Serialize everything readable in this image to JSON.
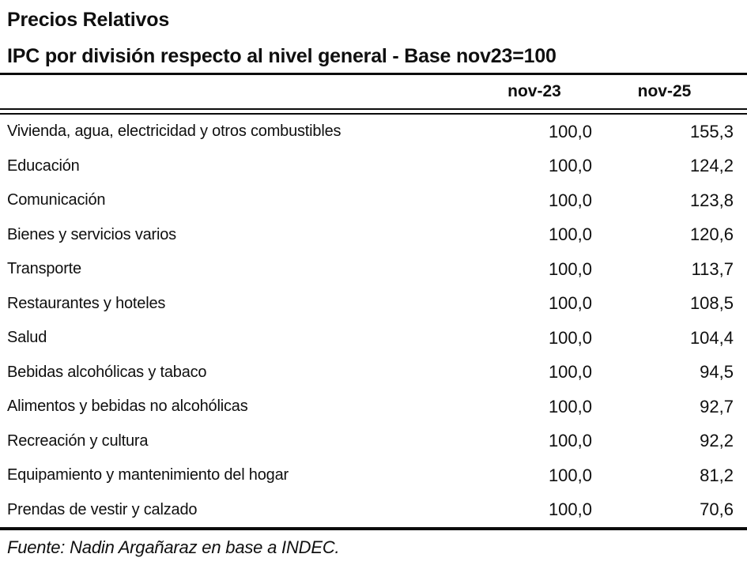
{
  "title": "Precios Relativos",
  "subtitle": "IPC por división respecto al nivel general - Base nov23=100",
  "footer": "Fuente: Nadin Argañaraz en base a INDEC.",
  "colors": {
    "background": "#ffffff",
    "text": "#0f0f0f",
    "rule": "#0c0c0c"
  },
  "chart_data": {
    "type": "table",
    "title": "Precios Relativos",
    "subtitle": "IPC por división respecto al nivel general - Base nov23=100",
    "columns": [
      "nov-23",
      "nov-25"
    ],
    "categories": [
      "Vivienda, agua, electricidad y otros combustibles",
      "Educación",
      "Comunicación",
      "Bienes y servicios varios",
      "Transporte",
      "Restaurantes y hoteles",
      "Salud",
      "Bebidas alcohólicas y tabaco",
      "Alimentos y bebidas no alcohólicas",
      "Recreación y cultura",
      "Equipamiento y mantenimiento del hogar",
      "Prendas de vestir y calzado"
    ],
    "series": [
      {
        "name": "nov-23",
        "values": [
          100.0,
          100.0,
          100.0,
          100.0,
          100.0,
          100.0,
          100.0,
          100.0,
          100.0,
          100.0,
          100.0,
          100.0
        ]
      },
      {
        "name": "nov-25",
        "values": [
          155.3,
          124.2,
          123.8,
          120.6,
          113.7,
          108.5,
          104.4,
          94.5,
          92.7,
          92.2,
          81.2,
          70.6
        ]
      }
    ],
    "display_rows": [
      [
        "Vivienda, agua, electricidad y otros combustibles",
        "100,0",
        "155,3"
      ],
      [
        "Educación",
        "100,0",
        "124,2"
      ],
      [
        "Comunicación",
        "100,0",
        "123,8"
      ],
      [
        "Bienes y servicios varios",
        "100,0",
        "120,6"
      ],
      [
        "Transporte",
        "100,0",
        "113,7"
      ],
      [
        "Restaurantes y hoteles",
        "100,0",
        "108,5"
      ],
      [
        "Salud",
        "100,0",
        "104,4"
      ],
      [
        "Bebidas alcohólicas y tabaco",
        "100,0",
        "94,5"
      ],
      [
        "Alimentos y bebidas no alcohólicas",
        "100,0",
        "92,7"
      ],
      [
        "Recreación y cultura",
        "100,0",
        "92,2"
      ],
      [
        "Equipamiento y mantenimiento del hogar",
        "100,0",
        "81,2"
      ],
      [
        "Prendas de vestir y calzado",
        "100,0",
        "70,6"
      ]
    ],
    "source": "Fuente: Nadin Argañaraz en base a INDEC."
  }
}
